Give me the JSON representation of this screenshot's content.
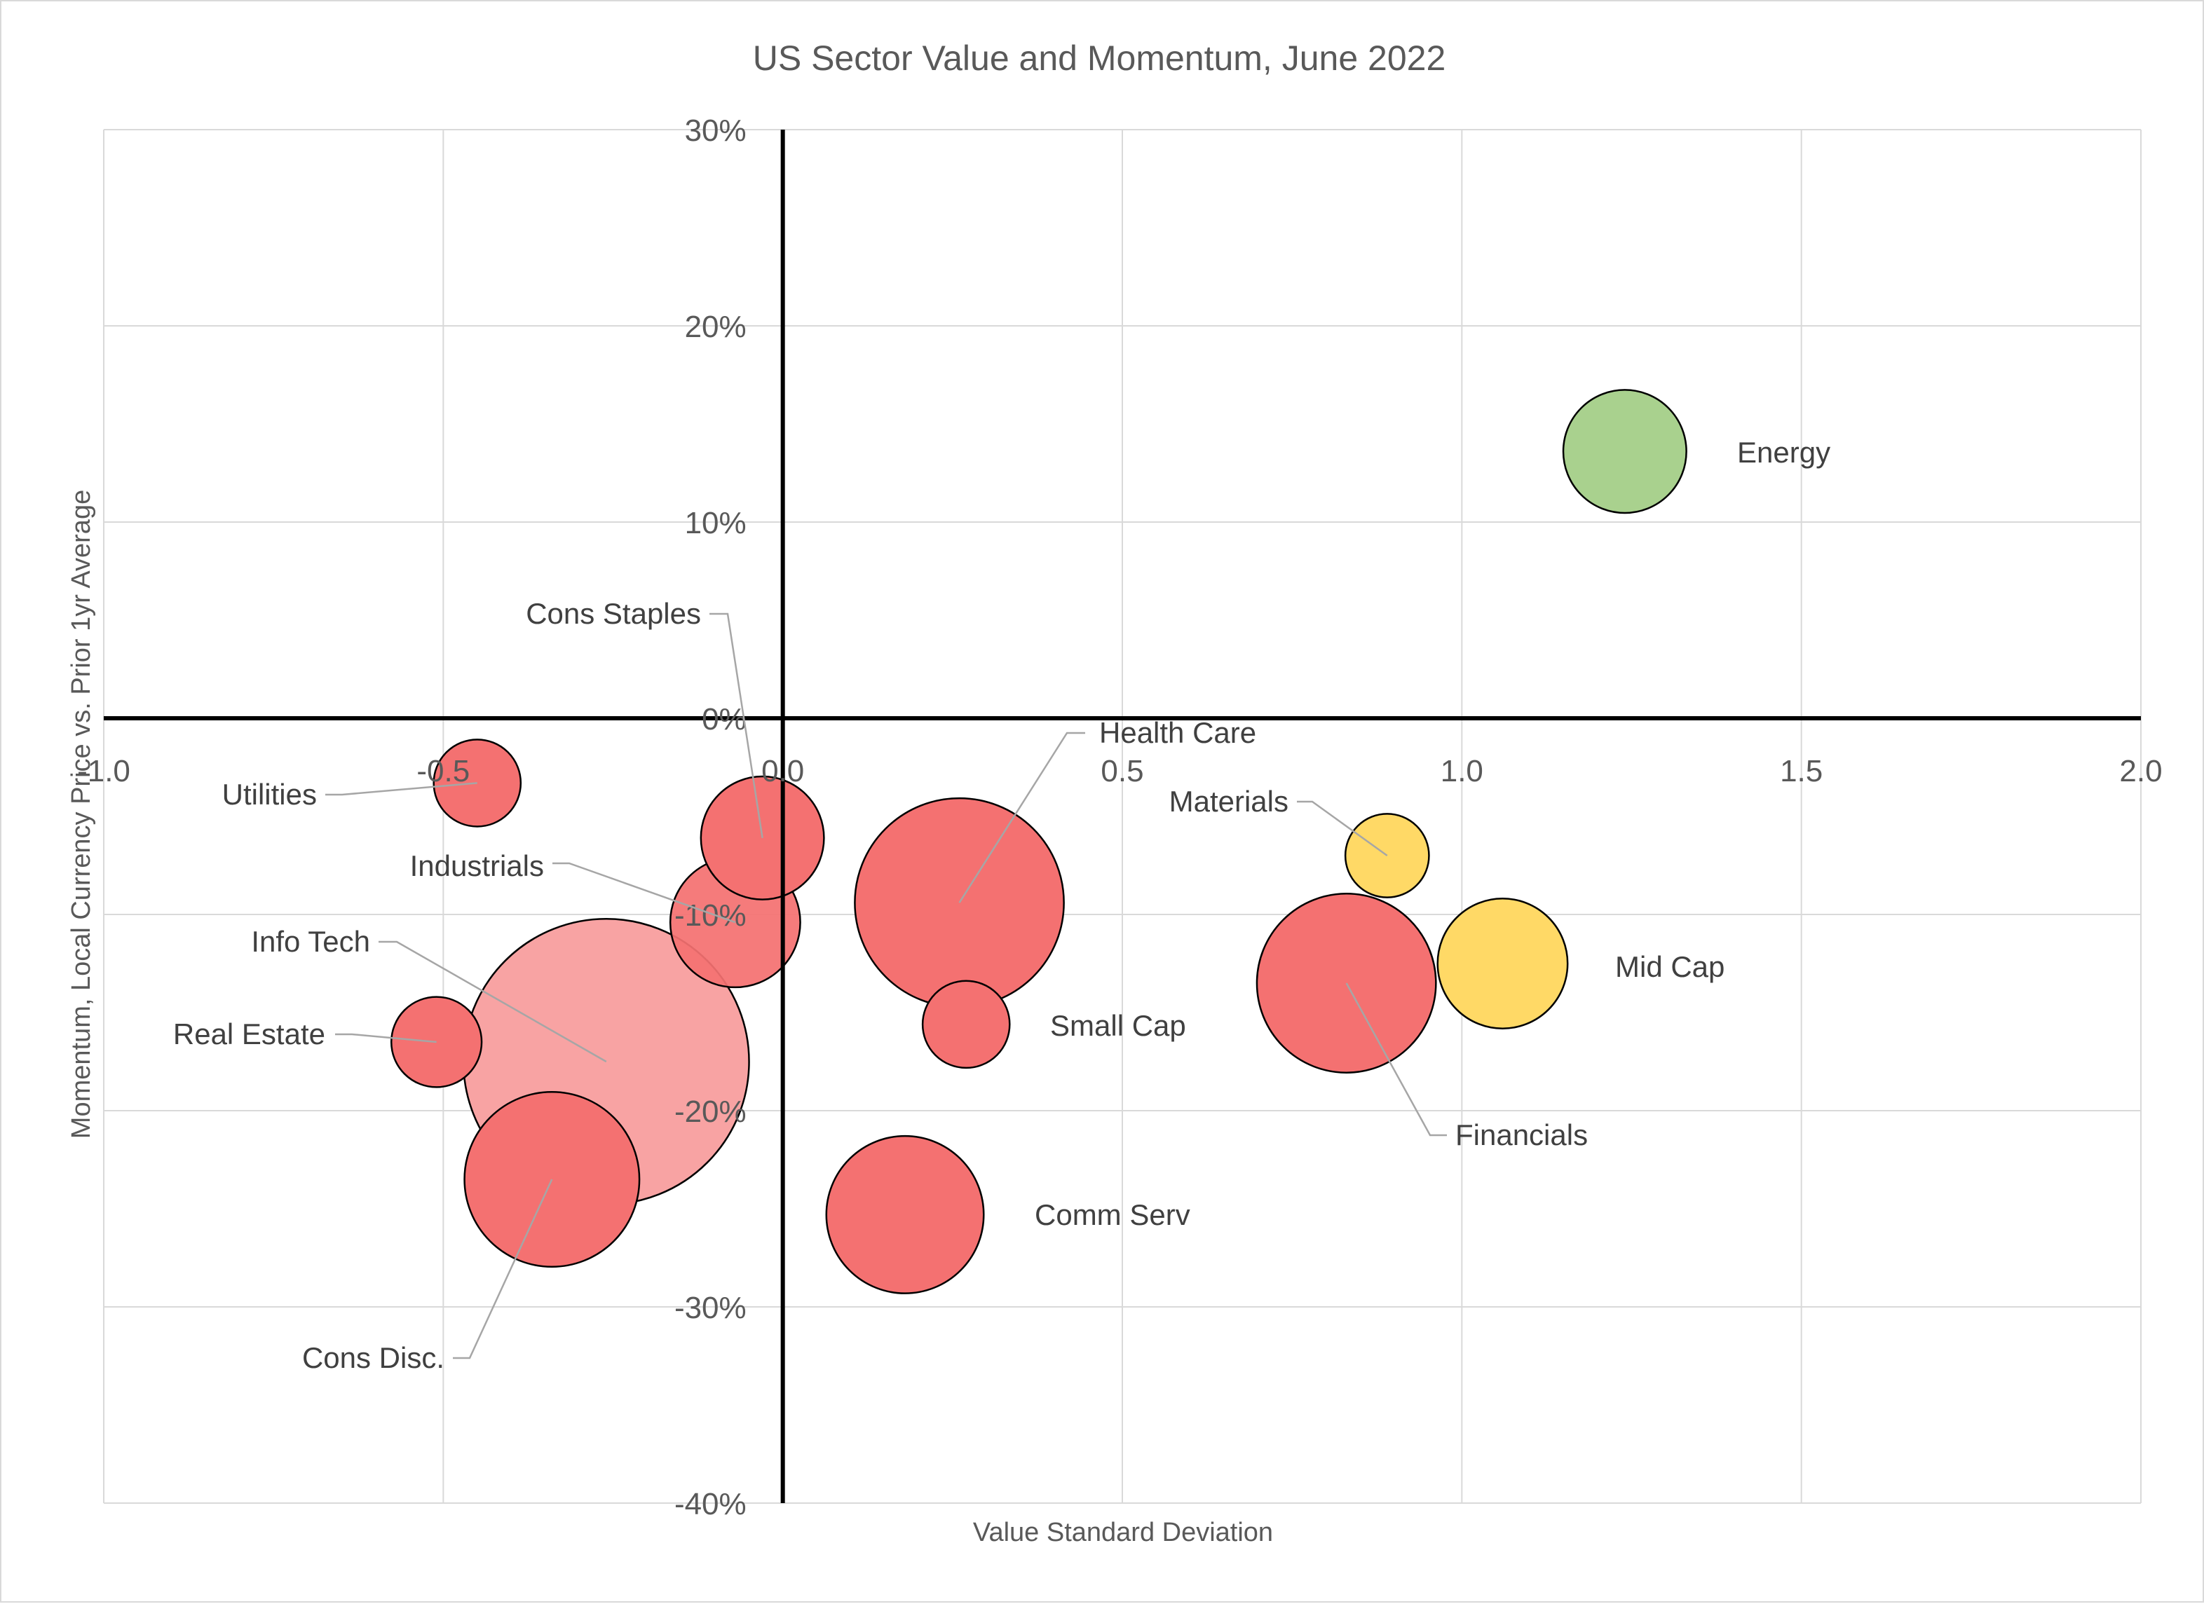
{
  "chart_data": {
    "type": "bubble",
    "title": "US Sector Value and Momentum, June 2022",
    "xlabel": "Value Standard Deviation",
    "ylabel": "Momentum, Local Currency Price vs. Prior 1yr Average",
    "xlim": [
      -1.0,
      2.0
    ],
    "ylim": [
      -40,
      30
    ],
    "x_ticks": [
      -1.0,
      -0.5,
      0.0,
      0.5,
      1.0,
      1.5,
      2.0
    ],
    "x_tick_labels": [
      "-1.0",
      "-0.5",
      "0.0",
      "0.5",
      "1.0",
      "1.5",
      "2.0"
    ],
    "y_ticks": [
      30,
      20,
      10,
      0,
      -10,
      -20,
      -30,
      -40
    ],
    "y_tick_labels": [
      "30%",
      "20%",
      "10%",
      "0%",
      "-10%",
      "-20%",
      "-30%",
      "-40%"
    ],
    "grid": true,
    "colors": {
      "red": "#f47171",
      "light_red": "#f8a3a3",
      "yellow": "#ffd966",
      "green": "#a9d18e"
    },
    "points": [
      {
        "name": "Info Tech",
        "x": -0.26,
        "y": -17.5,
        "size": 28.0,
        "color": "light_red"
      },
      {
        "name": "Energy",
        "x": 1.24,
        "y": 13.6,
        "size": 5.2,
        "color": "green"
      },
      {
        "name": "Utilities",
        "x": -0.45,
        "y": -3.3,
        "size": 2.6,
        "color": "red"
      },
      {
        "name": "Cons Staples",
        "x": -0.03,
        "y": -6.1,
        "size": 5.2,
        "color": "red"
      },
      {
        "name": "Industrials",
        "x": -0.07,
        "y": -10.4,
        "size": 5.8,
        "color": "red"
      },
      {
        "name": "Health Care",
        "x": 0.26,
        "y": -9.4,
        "size": 15.0,
        "color": "red"
      },
      {
        "name": "Small Cap",
        "x": 0.27,
        "y": -15.6,
        "size": 2.6,
        "color": "red"
      },
      {
        "name": "Materials",
        "x": 0.89,
        "y": -7.0,
        "size": 2.4,
        "color": "yellow"
      },
      {
        "name": "Mid Cap",
        "x": 1.06,
        "y": -12.5,
        "size": 5.8,
        "color": "yellow"
      },
      {
        "name": "Financials",
        "x": 0.83,
        "y": -13.5,
        "size": 11.0,
        "color": "red"
      },
      {
        "name": "Real Estate",
        "x": -0.51,
        "y": -16.5,
        "size": 2.8,
        "color": "red"
      },
      {
        "name": "Cons Disc.",
        "x": -0.34,
        "y": -23.5,
        "size": 10.5,
        "color": "red"
      },
      {
        "name": "Comm Serv",
        "x": 0.18,
        "y": -25.3,
        "size": 8.5,
        "color": "red"
      }
    ]
  }
}
